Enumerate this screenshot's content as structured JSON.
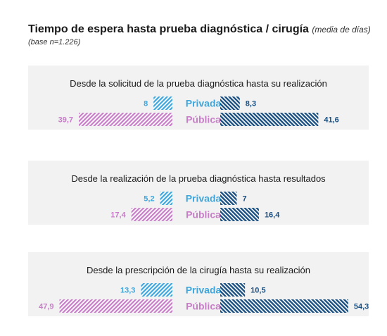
{
  "title": "Tiempo de espera hasta prueba diagnóstica / cirugía",
  "title_note": "(media de días)",
  "base_note": "(base n=1.226)",
  "colors": {
    "privada_light": "#3ea6dc",
    "privada_dark": "#1a4f82",
    "publica_light": "#c77dc7",
    "publica_dark": "#1a4f82",
    "panel_bg": "#f2f2f2"
  },
  "chart_data": {
    "type": "bar",
    "legend": [
      "Privada",
      "Pública"
    ],
    "panels": [
      {
        "title": "Desde la solicitud de la prueba diagnóstica hasta su realización",
        "left": {
          "privada": 8,
          "publica": 39.7
        },
        "right": {
          "privada": 8.3,
          "publica": 41.6
        },
        "left_labels": {
          "privada": "8",
          "publica": "39,7"
        },
        "right_labels": {
          "privada": "8,3",
          "publica": "41,6"
        }
      },
      {
        "title": "Desde la realización de la prueba diagnóstica hasta resultados",
        "left": {
          "privada": 5.2,
          "publica": 17.4
        },
        "right": {
          "privada": 7,
          "publica": 16.4
        },
        "left_labels": {
          "privada": "5,2",
          "publica": "17,4"
        },
        "right_labels": {
          "privada": "7",
          "publica": "16,4"
        }
      },
      {
        "title": "Desde la prescripción de la cirugía hasta su realización",
        "left": {
          "privada": 13.3,
          "publica": 47.9
        },
        "right": {
          "privada": 10.5,
          "publica": 54.3
        },
        "left_labels": {
          "privada": "13,3",
          "publica": "47,9"
        },
        "right_labels": {
          "privada": "10,5",
          "publica": "54,3"
        }
      }
    ]
  }
}
